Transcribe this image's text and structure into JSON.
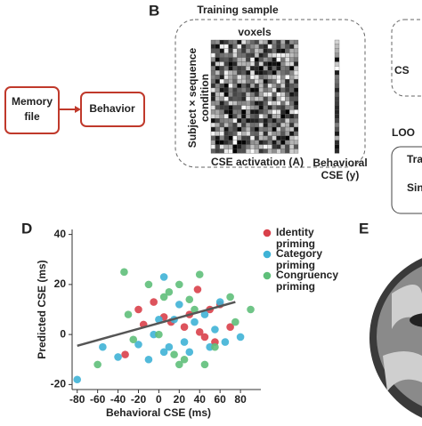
{
  "panel_a": {
    "memory_box": [
      "Memory",
      "file"
    ],
    "behavior_box": "Behavior"
  },
  "panel_b": {
    "letter": "B",
    "title": "Training sample",
    "voxels_label": "voxels",
    "row_label": [
      "Subject × sequence",
      "condition"
    ],
    "activation_label": "CSE activation (A)",
    "behavioral_label": [
      "Behavioral",
      "CSE (y)"
    ]
  },
  "panel_c_cut": {
    "cs": "CS",
    "loo": "LOO",
    "tra": "Tra",
    "sin": "Sin"
  },
  "panel_d": {
    "letter": "D"
  },
  "panel_e": {
    "letter": "E"
  },
  "chart_data": {
    "type": "scatter",
    "x_label": "Behavioral CSE (ms)",
    "y_label": "Predicted CSE (ms)",
    "xlim": [
      -85,
      100
    ],
    "ylim": [
      -22,
      42
    ],
    "xticks": [
      -80,
      -60,
      -40,
      -20,
      0,
      20,
      40,
      60,
      80
    ],
    "yticks": [
      -20,
      0,
      20,
      40
    ],
    "legend": "right",
    "fit": {
      "color": "#555555",
      "x": [
        -80,
        75
      ],
      "y": [
        -4.5,
        13
      ]
    },
    "series": [
      {
        "name": "Identity priming",
        "color": "#d9404a",
        "x": [
          -20,
          -5,
          -33,
          5,
          12,
          25,
          40,
          45,
          50,
          38,
          60,
          70,
          -15,
          30,
          55
        ],
        "y": [
          10,
          13,
          -8,
          7,
          5,
          3,
          1,
          -1,
          10,
          18,
          12,
          3,
          4,
          8,
          -3
        ]
      },
      {
        "name": "Category priming",
        "color": "#3fb3d6",
        "x": [
          -80,
          -55,
          -40,
          -20,
          -10,
          0,
          5,
          10,
          15,
          20,
          25,
          30,
          35,
          45,
          50,
          55,
          60,
          5,
          -5,
          65,
          80
        ],
        "y": [
          -18,
          -5,
          -9,
          -4,
          -10,
          6,
          23,
          -5,
          6,
          12,
          -3,
          -7,
          5,
          8,
          -5,
          2,
          13,
          -7,
          0,
          -3,
          -1
        ]
      },
      {
        "name": "Congruency priming",
        "color": "#5fbf7a",
        "x": [
          -60,
          -30,
          -25,
          -10,
          0,
          5,
          10,
          15,
          20,
          25,
          30,
          35,
          40,
          45,
          55,
          70,
          75,
          -34,
          90,
          20
        ],
        "y": [
          -12,
          8,
          -2,
          20,
          0,
          15,
          17,
          -8,
          20,
          -10,
          14,
          10,
          24,
          -12,
          -5,
          15,
          5,
          25,
          10,
          -12
        ]
      }
    ]
  }
}
